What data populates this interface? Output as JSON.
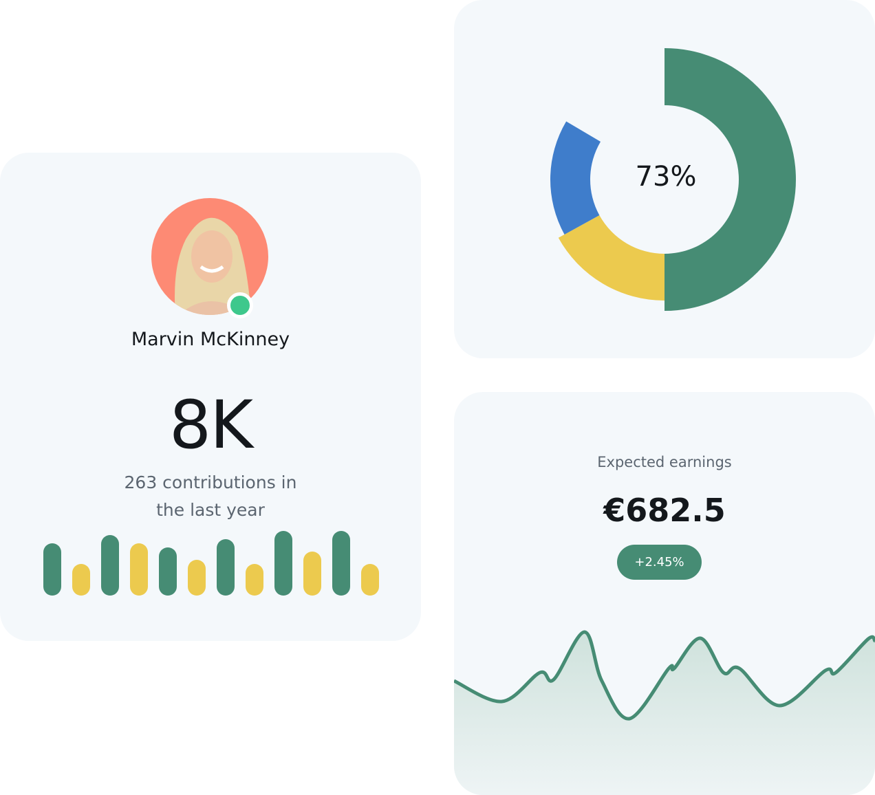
{
  "profile": {
    "name": "Marvin McKinney",
    "online": true,
    "stat": "8K",
    "caption_line1": "263 contributions in",
    "caption_line2": "the last year"
  },
  "colors": {
    "green": "#468c74",
    "yellow": "#ecca4e",
    "blue": "#3f7dcb",
    "avatar_bg": "#fd8a74",
    "status": "#3ec88c"
  },
  "donut": {
    "label": "73%"
  },
  "earnings": {
    "label": "Expected earnings",
    "value": "€682.5",
    "change": "+2.45%"
  },
  "chart_data": [
    {
      "type": "bar",
      "values": [
        76,
        46,
        88,
        76,
        70,
        52,
        82,
        46,
        94,
        64,
        94,
        46
      ],
      "colors": [
        "green",
        "yellow",
        "green",
        "yellow",
        "green",
        "yellow",
        "green",
        "yellow",
        "green",
        "yellow",
        "green",
        "yellow"
      ]
    },
    {
      "type": "pie",
      "values": [
        50,
        17,
        16.5
      ],
      "colors": [
        "green",
        "yellow",
        "blue"
      ]
    },
    {
      "type": "area",
      "x": [
        0,
        11.4,
        20.4,
        23.7,
        31,
        35.1,
        41.7,
        51,
        52.3,
        58.5,
        64,
        67.8,
        77.3,
        88.2,
        90.7,
        98.4,
        100
      ],
      "y": [
        70,
        40,
        82,
        72,
        141,
        70,
        15,
        88,
        88,
        132,
        82,
        88,
        34,
        85,
        82,
        131,
        128
      ]
    }
  ]
}
